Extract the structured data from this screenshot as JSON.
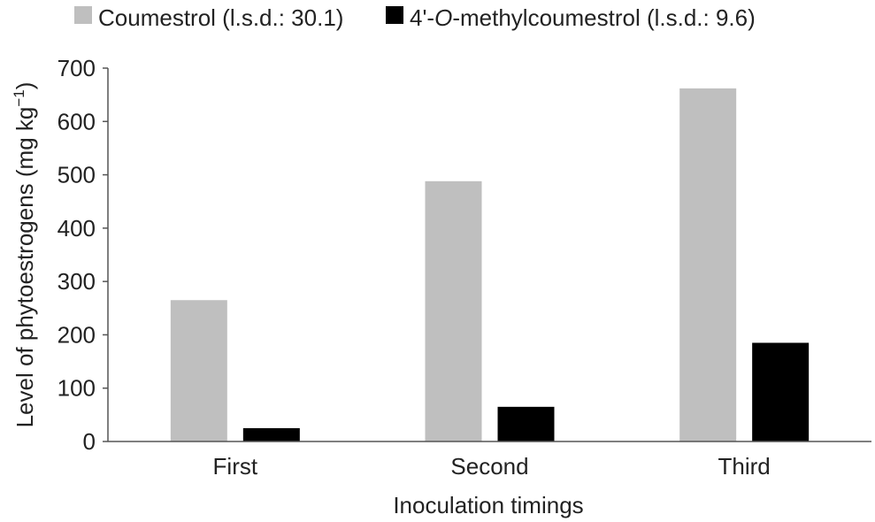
{
  "chart_data": {
    "type": "bar",
    "xlabel": "Inoculation timings",
    "ylabel": "Level of phytoestrogens (mg kg",
    "ylabel_superscript": "−1",
    "ylabel_close": ")",
    "categories": [
      "First",
      "Second",
      "Third"
    ],
    "ylim": [
      0,
      700
    ],
    "yticks": [
      0,
      100,
      200,
      300,
      400,
      500,
      600,
      700
    ],
    "grid": false,
    "legend_position": "top",
    "series": [
      {
        "name_prefix": "Coumestrol (l.s.d.: 30.1)",
        "name_italic": "",
        "name_suffix": "",
        "color": "#bfbfbf",
        "values": [
          265,
          488,
          662
        ]
      },
      {
        "name_prefix": "4'-",
        "name_italic": "O",
        "name_suffix": "-methylcoumestrol (l.s.d.: 9.6)",
        "color": "#000000",
        "values": [
          25,
          65,
          185
        ]
      }
    ]
  }
}
